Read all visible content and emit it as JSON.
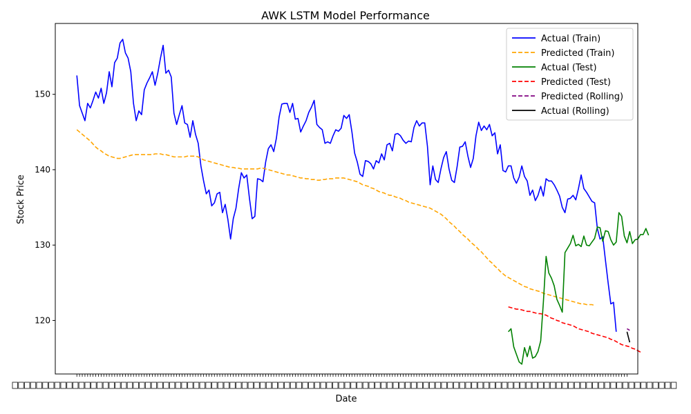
{
  "chart_data": {
    "type": "line",
    "title": "AWK LSTM Model Performance",
    "xlabel": "Date",
    "ylabel": "Stock Price",
    "ylim": [
      112.9,
      159.4
    ],
    "yticks": [
      120,
      130,
      140,
      150
    ],
    "xlim": [
      -8,
      208
    ],
    "x_tick_labels_legible": false,
    "grid": false,
    "legend_position": "top-right",
    "series": [
      {
        "name": "Actual (Train)",
        "color": "#0000ff",
        "style": "solid",
        "x_start": 0,
        "values": [
          152.5,
          148.5,
          147.5,
          146.5,
          148.8,
          148.2,
          149.2,
          150.3,
          149.5,
          150.8,
          148.8,
          150.2,
          153.0,
          151.0,
          154.2,
          154.8,
          156.8,
          157.3,
          155.5,
          154.8,
          153.0,
          148.8,
          146.5,
          147.8,
          147.3,
          150.6,
          151.5,
          152.2,
          153.0,
          151.2,
          152.8,
          154.8,
          156.5,
          152.8,
          153.2,
          152.3,
          147.5,
          146.0,
          147.3,
          148.5,
          146.2,
          146.0,
          144.3,
          146.5,
          144.7,
          143.5,
          140.5,
          138.5,
          136.8,
          137.3,
          135.2,
          135.6,
          136.8,
          137.0,
          134.3,
          135.4,
          133.4,
          130.8,
          133.5,
          134.9,
          137.5,
          139.6,
          138.9,
          139.3,
          136.2,
          133.5,
          133.8,
          138.8,
          138.7,
          138.4,
          141.0,
          142.8,
          143.3,
          142.4,
          144.2,
          147.0,
          148.7,
          148.8,
          148.8,
          147.6,
          148.8,
          146.7,
          146.8,
          145.0,
          145.8,
          146.5,
          147.6,
          148.3,
          149.2,
          146.0,
          145.6,
          145.3,
          143.5,
          143.7,
          143.5,
          144.5,
          145.3,
          145.1,
          145.5,
          147.2,
          146.8,
          147.3,
          145.0,
          142.2,
          141.0,
          139.4,
          139.1,
          141.2,
          141.1,
          140.8,
          140.1,
          141.2,
          140.9,
          142.1,
          141.3,
          143.3,
          143.5,
          142.5,
          144.7,
          144.8,
          144.5,
          143.9,
          143.5,
          143.8,
          143.7,
          145.6,
          146.5,
          145.8,
          146.2,
          146.2,
          143.1,
          138.0,
          140.5,
          138.7,
          138.3,
          140.1,
          141.6,
          142.4,
          140.1,
          138.6,
          138.3,
          140.4,
          143.0,
          143.1,
          143.7,
          141.8,
          140.3,
          141.5,
          144.5,
          146.3,
          145.2,
          145.8,
          145.3,
          146.0,
          144.5,
          144.9,
          142.1,
          143.3,
          139.9,
          139.7,
          140.5,
          140.5,
          138.9,
          138.2,
          139.0,
          140.5,
          139.1,
          138.5,
          136.6,
          137.3,
          135.9,
          136.6,
          137.8,
          136.5,
          138.8,
          138.5,
          138.5,
          138.0,
          137.3,
          136.5,
          135.0,
          134.3,
          136.1,
          136.2,
          136.6,
          136.0,
          137.5,
          139.3,
          137.5,
          137.0,
          136.4,
          135.8,
          135.6,
          132.2,
          130.8,
          131.1,
          128.0,
          125.0,
          122.2,
          122.4,
          118.5
        ]
      },
      {
        "name": "Predicted (Train)",
        "color": "#ffa500",
        "style": "dashed",
        "x_start": 0,
        "values": [
          145.3,
          145.0,
          144.7,
          144.4,
          144.1,
          143.8,
          143.4,
          143.0,
          142.7,
          142.5,
          142.2,
          142.0,
          141.8,
          141.7,
          141.6,
          141.5,
          141.5,
          141.6,
          141.7,
          141.8,
          141.9,
          142.0,
          142.0,
          142.0,
          142.0,
          142.0,
          142.0,
          142.0,
          142.0,
          142.1,
          142.1,
          142.1,
          142.0,
          142.0,
          141.9,
          141.8,
          141.7,
          141.7,
          141.7,
          141.7,
          141.7,
          141.8,
          141.8,
          141.8,
          141.8,
          141.7,
          141.5,
          141.3,
          141.2,
          141.1,
          141.0,
          140.9,
          140.8,
          140.7,
          140.6,
          140.5,
          140.4,
          140.3,
          140.3,
          140.2,
          140.2,
          140.1,
          140.1,
          140.1,
          140.1,
          140.1,
          140.1,
          140.1,
          140.2,
          140.2,
          140.1,
          140.0,
          139.9,
          139.8,
          139.7,
          139.6,
          139.5,
          139.4,
          139.3,
          139.3,
          139.2,
          139.1,
          139.0,
          138.9,
          138.9,
          138.8,
          138.8,
          138.7,
          138.7,
          138.6,
          138.6,
          138.7,
          138.7,
          138.8,
          138.8,
          138.8,
          138.9,
          138.9,
          138.9,
          138.9,
          138.8,
          138.7,
          138.6,
          138.5,
          138.4,
          138.2,
          138.0,
          137.9,
          137.8,
          137.6,
          137.5,
          137.3,
          137.1,
          137.0,
          136.9,
          136.7,
          136.6,
          136.6,
          136.4,
          136.3,
          136.2,
          136.0,
          135.9,
          135.7,
          135.6,
          135.5,
          135.4,
          135.3,
          135.2,
          135.1,
          135.0,
          134.9,
          134.7,
          134.5,
          134.3,
          134.1,
          133.8,
          133.5,
          133.1,
          132.8,
          132.5,
          132.1,
          131.8,
          131.4,
          131.1,
          130.8,
          130.4,
          130.1,
          129.8,
          129.4,
          129.1,
          128.7,
          128.3,
          127.9,
          127.6,
          127.2,
          126.9,
          126.5,
          126.2,
          125.9,
          125.7,
          125.5,
          125.3,
          125.1,
          124.9,
          124.7,
          124.5,
          124.4,
          124.2,
          124.1,
          124.0,
          123.9,
          123.8,
          123.6,
          123.5,
          123.4,
          123.3,
          123.2,
          123.1,
          123.0,
          122.9,
          122.8,
          122.7,
          122.6,
          122.5,
          122.4,
          122.3,
          122.2,
          122.2,
          122.1,
          122.1,
          122.1,
          122.0
        ]
      },
      {
        "name": "Actual (Test)",
        "color": "#008000",
        "style": "solid",
        "x_start": 160,
        "values": [
          118.5,
          118.9,
          116.5,
          115.5,
          114.5,
          114.2,
          116.4,
          115.2,
          116.6,
          115.0,
          115.2,
          115.9,
          117.3,
          122.5,
          128.5,
          126.3,
          125.6,
          124.6,
          122.8,
          122.0,
          121.1,
          129.0,
          129.6,
          130.2,
          131.3,
          129.9,
          130.1,
          129.8,
          131.2,
          130.0,
          129.9,
          130.4,
          130.9,
          132.4,
          132.3,
          130.5,
          131.9,
          131.8,
          130.7,
          130.0,
          130.4,
          134.3,
          133.8,
          131.2,
          130.3,
          131.8,
          130.2,
          130.7,
          130.8,
          131.4,
          131.4,
          132.2,
          131.3
        ]
      },
      {
        "name": "Predicted (Test)",
        "color": "#ff0000",
        "style": "dashed",
        "x_start": 160,
        "values": [
          121.8,
          121.7,
          121.6,
          121.5,
          121.5,
          121.4,
          121.3,
          121.2,
          121.2,
          121.1,
          121.0,
          120.9,
          120.9,
          120.8,
          120.7,
          120.5,
          120.3,
          120.2,
          120.0,
          119.9,
          119.7,
          119.6,
          119.5,
          119.4,
          119.3,
          119.1,
          118.9,
          118.8,
          118.7,
          118.6,
          118.5,
          118.3,
          118.2,
          118.1,
          118.0,
          117.9,
          117.8,
          117.7,
          117.5,
          117.4,
          117.2,
          117.0,
          116.8,
          116.7,
          116.6,
          116.5,
          116.3,
          116.2,
          116.0,
          115.8
        ]
      },
      {
        "name": "Predicted (Rolling)",
        "color": "#800080",
        "style": "dashed",
        "x_start": 204,
        "values": [
          118.9,
          118.7
        ]
      },
      {
        "name": "Actual (Rolling)",
        "color": "#000000",
        "style": "solid",
        "x_start": 204,
        "values": [
          118.5,
          117.1
        ]
      }
    ]
  }
}
